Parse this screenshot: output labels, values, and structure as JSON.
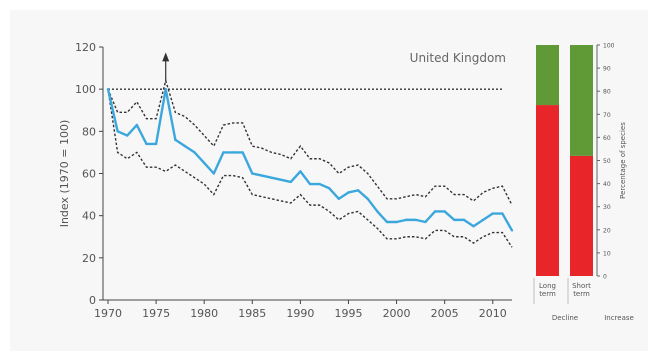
{
  "chart_data": [
    {
      "type": "line",
      "title": "United Kingdom",
      "ylabel": "Index (1970 = 100)",
      "xlabel": "",
      "xlim": [
        1970,
        2012
      ],
      "ylim": [
        0,
        120
      ],
      "xticks": [
        "1970",
        "1975",
        "1980",
        "1985",
        "1990",
        "1995",
        "2000",
        "2005",
        "2010"
      ],
      "yticks": [
        "0",
        "20",
        "40",
        "60",
        "80",
        "100",
        "120"
      ],
      "reference_line": 100,
      "x": [
        1970,
        1971,
        1972,
        1973,
        1974,
        1975,
        1976,
        1977,
        1978,
        1979,
        1980,
        1981,
        1982,
        1983,
        1984,
        1985,
        1986,
        1987,
        1988,
        1989,
        1990,
        1991,
        1992,
        1993,
        1994,
        1995,
        1996,
        1997,
        1998,
        1999,
        2000,
        2001,
        2002,
        2003,
        2004,
        2005,
        2006,
        2007,
        2008,
        2009,
        2010,
        2011,
        2012
      ],
      "series": [
        {
          "role": "index",
          "color": "#3ba7dd",
          "values": [
            100,
            80,
            78,
            83,
            74,
            74,
            100,
            76,
            73,
            70,
            65,
            60,
            70,
            70,
            70,
            60,
            59,
            58,
            57,
            56,
            61,
            55,
            55,
            53,
            48,
            51,
            52,
            48,
            42,
            37,
            37,
            38,
            38,
            37,
            42,
            42,
            38,
            38,
            35,
            38,
            41,
            41,
            33
          ]
        },
        {
          "role": "upper-confidence",
          "color": "#333333",
          "values": [
            100,
            89,
            89,
            94,
            86,
            86,
            104,
            89,
            87,
            83,
            78,
            73,
            83,
            84,
            84,
            73,
            72,
            70,
            69,
            67,
            73,
            67,
            67,
            65,
            60,
            63,
            64,
            60,
            54,
            48,
            48,
            49,
            50,
            49,
            54,
            54,
            50,
            50,
            47,
            51,
            53,
            54,
            45
          ]
        },
        {
          "role": "lower-confidence",
          "color": "#333333",
          "values": [
            100,
            70,
            67,
            70,
            63,
            63,
            61,
            64,
            61,
            58,
            55,
            50,
            59,
            59,
            58,
            50,
            49,
            48,
            47,
            46,
            50,
            45,
            45,
            42,
            38,
            41,
            42,
            38,
            34,
            29,
            29,
            30,
            30,
            29,
            33,
            33,
            30,
            30,
            27,
            30,
            32,
            32,
            25
          ]
        }
      ],
      "annotation_arrow_year": 1976
    },
    {
      "type": "bar",
      "stacked": true,
      "ylabel": "Percentage of species",
      "ylim": [
        0,
        100
      ],
      "yticks": [
        "0",
        "10",
        "20",
        "30",
        "40",
        "50",
        "60",
        "70",
        "80",
        "90",
        "100"
      ],
      "categories": [
        [
          "Long",
          "term"
        ],
        [
          "Short",
          "term"
        ]
      ],
      "series": [
        {
          "name": "Decline",
          "color": "#e8262a",
          "values": [
            74,
            52
          ]
        },
        {
          "name": "Increase",
          "color": "#5f9a36",
          "values": [
            26,
            48
          ]
        }
      ],
      "legend": [
        "Decline",
        "Increase"
      ]
    }
  ]
}
